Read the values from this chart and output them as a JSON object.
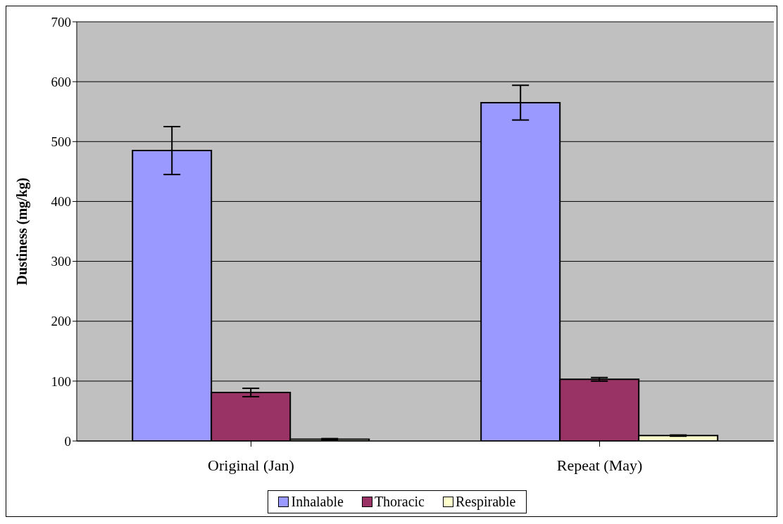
{
  "chart_data": {
    "type": "bar",
    "ylabel": "Dustiness (mg/kg)",
    "categories": [
      "Original (Jan)",
      "Repeat (May)"
    ],
    "series": [
      {
        "name": "Inhalable",
        "color": "#9999ff",
        "values": [
          485,
          565
        ],
        "errors": [
          40,
          29
        ]
      },
      {
        "name": "Thoracic",
        "color": "#993366",
        "values": [
          81,
          103
        ],
        "errors": [
          7,
          3
        ]
      },
      {
        "name": "Respirable",
        "color": "#ffffcc",
        "values": [
          3,
          9
        ],
        "errors": [
          1,
          1
        ]
      }
    ],
    "ylim": [
      0,
      700
    ],
    "yticks": [
      0,
      100,
      200,
      300,
      400,
      500,
      600,
      700
    ],
    "grid": "y",
    "legend": "bottom"
  }
}
